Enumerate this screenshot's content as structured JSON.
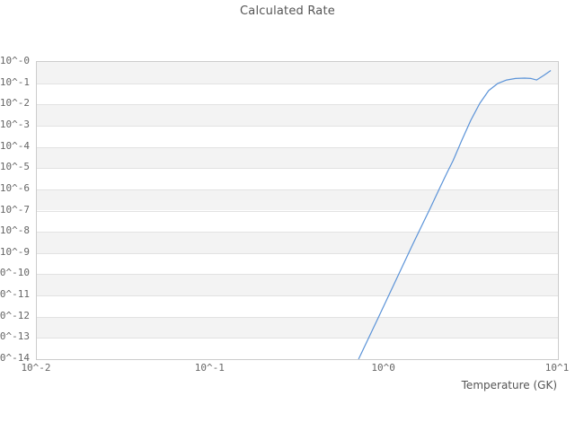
{
  "chart_data": {
    "type": "line",
    "title": "Calculated Rate",
    "xlabel": "Temperature (GK)",
    "ylabel": "",
    "x_scale": "log",
    "y_scale": "log",
    "xlim": [
      0.01,
      10
    ],
    "ylim": [
      1e-14,
      1
    ],
    "x_ticks": [
      "10^-2",
      "10^-1",
      "10^0",
      "10^1"
    ],
    "y_ticks": [
      "10^-0",
      "10^-1",
      "10^-2",
      "10^-3",
      "10^-4",
      "10^-5",
      "10^-6",
      "10^-7",
      "10^-8",
      "10^-9",
      "10^-10",
      "10^-11",
      "10^-12",
      "10^-13",
      "10^-14"
    ],
    "grid": "horizontal-bands",
    "legend": "none",
    "colors": {
      "line": "#5b93d8",
      "band": "#f3f3f3",
      "gridline": "#e2e2e2",
      "border": "#cccccc",
      "text": "#666666"
    },
    "series": [
      {
        "name": "calculated-rate",
        "points_T_log10rate": [
          [
            0.712,
            -14.0
          ],
          [
            0.913,
            -12.14
          ],
          [
            1.155,
            -10.36
          ],
          [
            1.46,
            -8.59
          ],
          [
            1.85,
            -6.85
          ],
          [
            2.08,
            -5.96
          ],
          [
            2.29,
            -5.25
          ],
          [
            2.49,
            -4.65
          ],
          [
            2.8,
            -3.68
          ],
          [
            3.15,
            -2.75
          ],
          [
            3.55,
            -1.95
          ],
          [
            3.99,
            -1.35
          ],
          [
            4.49,
            -1.02
          ],
          [
            5.06,
            -0.85
          ],
          [
            5.7,
            -0.78
          ],
          [
            6.42,
            -0.76
          ],
          [
            7.0,
            -0.78
          ],
          [
            7.53,
            -0.85
          ],
          [
            8.3,
            -0.63
          ],
          [
            9.1,
            -0.4
          ]
        ]
      }
    ]
  }
}
